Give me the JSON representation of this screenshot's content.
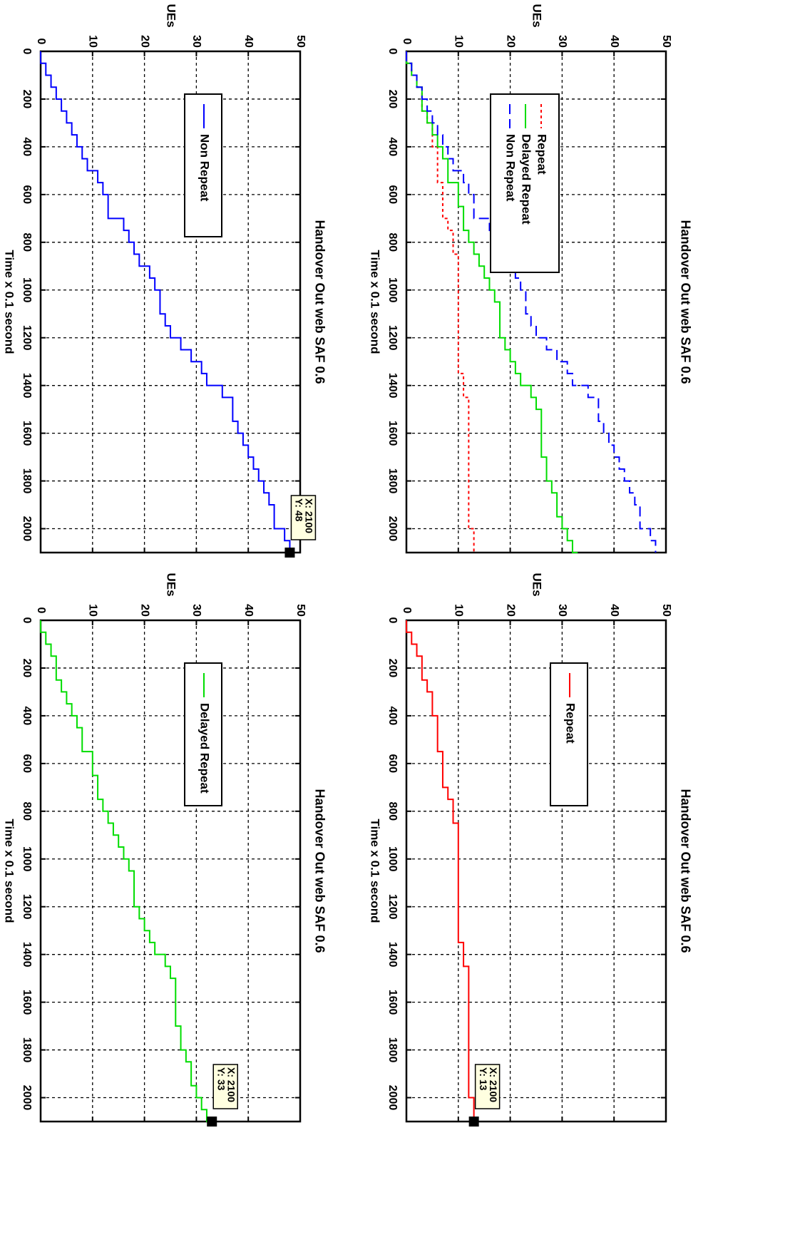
{
  "chart_data": [
    {
      "type": "line",
      "title": "Handover Out web SAF 0.6",
      "xlabel": "Time    x 0.1 second",
      "ylabel": "UEs",
      "xlim": [
        0,
        2100
      ],
      "ylim": [
        0,
        50
      ],
      "xticks": [
        "0",
        "200",
        "400",
        "600",
        "800",
        "1000",
        "1200",
        "1400",
        "1600",
        "1800",
        "2000"
      ],
      "yticks": [
        "0",
        "10",
        "20",
        "30",
        "40",
        "50"
      ],
      "grid": true,
      "legend": "top-left",
      "series": [
        {
          "name": "Repeat",
          "color": "#ff0000",
          "style": "dotted",
          "x": [
            0,
            50,
            100,
            150,
            200,
            250,
            300,
            350,
            400,
            450,
            500,
            550,
            600,
            650,
            700,
            750,
            800,
            850,
            900,
            950,
            1000,
            1050,
            1100,
            1150,
            1200,
            1250,
            1300,
            1350,
            1400,
            1450,
            1500,
            1550,
            1600,
            1650,
            1700,
            1750,
            1800,
            1850,
            1900,
            1950,
            2000,
            2050,
            2100
          ],
          "y": [
            0,
            1,
            2,
            3,
            3,
            4,
            5,
            5,
            6,
            6,
            6,
            7,
            7,
            7,
            8,
            9,
            9,
            10,
            10,
            10,
            10,
            10,
            10,
            10,
            10,
            10,
            10,
            11,
            11,
            12,
            12,
            12,
            12,
            12,
            12,
            12,
            12,
            12,
            12,
            12,
            13,
            13,
            13
          ]
        },
        {
          "name": "Delayed Repeat",
          "color": "#00dd00",
          "style": "solid",
          "x": [
            0,
            50,
            100,
            150,
            200,
            250,
            300,
            350,
            400,
            450,
            500,
            550,
            600,
            650,
            700,
            750,
            800,
            850,
            900,
            950,
            1000,
            1050,
            1100,
            1150,
            1200,
            1250,
            1300,
            1350,
            1400,
            1450,
            1500,
            1550,
            1600,
            1650,
            1700,
            1750,
            1800,
            1850,
            1900,
            1950,
            2000,
            2050,
            2100
          ],
          "y": [
            0,
            1,
            2,
            3,
            3,
            4,
            5,
            6,
            7,
            8,
            8,
            10,
            10,
            11,
            11,
            12,
            13,
            14,
            15,
            16,
            17,
            18,
            18,
            18,
            19,
            20,
            21,
            22,
            24,
            25,
            26,
            26,
            26,
            26,
            27,
            27,
            28,
            29,
            29,
            30,
            31,
            32,
            33
          ]
        },
        {
          "name": "Non Repeat",
          "color": "#0000ff",
          "style": "dashed",
          "x": [
            0,
            50,
            100,
            150,
            200,
            250,
            300,
            350,
            400,
            450,
            500,
            550,
            600,
            650,
            700,
            750,
            800,
            850,
            900,
            950,
            1000,
            1050,
            1100,
            1150,
            1200,
            1250,
            1300,
            1350,
            1400,
            1450,
            1500,
            1550,
            1600,
            1650,
            1700,
            1750,
            1800,
            1850,
            1900,
            1950,
            2000,
            2050,
            2100
          ],
          "y": [
            0,
            1,
            2,
            3,
            4,
            5,
            6,
            7,
            8,
            9,
            11,
            12,
            13,
            13,
            16,
            17,
            18,
            19,
            21,
            22,
            23,
            23,
            24,
            25,
            27,
            29,
            31,
            32,
            35,
            37,
            37,
            38,
            39,
            40,
            41,
            42,
            43,
            44,
            45,
            45,
            47,
            48,
            48
          ]
        }
      ]
    },
    {
      "type": "line",
      "title": "Handover Out web SAF 0.6",
      "xlabel": "Time    x 0.1 second",
      "ylabel": "UEs",
      "xlim": [
        0,
        2100
      ],
      "ylim": [
        0,
        50
      ],
      "xticks": [
        "0",
        "200",
        "400",
        "600",
        "800",
        "1000",
        "1200",
        "1400",
        "1600",
        "1800",
        "2000"
      ],
      "yticks": [
        "0",
        "10",
        "20",
        "30",
        "40",
        "50"
      ],
      "grid": true,
      "legend": "top-left",
      "datatip": {
        "x_label": "X: 2100",
        "y_label": "Y: 13",
        "x": 2100,
        "y": 13
      },
      "series": [
        {
          "name": "Repeat",
          "color": "#ff0000",
          "style": "solid",
          "x": [
            0,
            50,
            100,
            150,
            200,
            250,
            300,
            350,
            400,
            450,
            500,
            550,
            600,
            650,
            700,
            750,
            800,
            850,
            900,
            950,
            1000,
            1050,
            1100,
            1150,
            1200,
            1250,
            1300,
            1350,
            1400,
            1450,
            1500,
            1550,
            1600,
            1650,
            1700,
            1750,
            1800,
            1850,
            1900,
            1950,
            2000,
            2050,
            2100
          ],
          "y": [
            0,
            1,
            2,
            3,
            3,
            4,
            5,
            5,
            6,
            6,
            6,
            7,
            7,
            7,
            8,
            9,
            9,
            10,
            10,
            10,
            10,
            10,
            10,
            10,
            10,
            10,
            10,
            11,
            11,
            12,
            12,
            12,
            12,
            12,
            12,
            12,
            12,
            12,
            12,
            12,
            13,
            13,
            13
          ]
        }
      ]
    },
    {
      "type": "line",
      "title": "Handover Out web SAF 0.6",
      "xlabel": "Time    x 0.1 second",
      "ylabel": "UEs",
      "xlim": [
        0,
        2100
      ],
      "ylim": [
        0,
        50
      ],
      "xticks": [
        "0",
        "200",
        "400",
        "600",
        "800",
        "1000",
        "1200",
        "1400",
        "1600",
        "1800",
        "2000"
      ],
      "yticks": [
        "0",
        "10",
        "20",
        "30",
        "40",
        "50"
      ],
      "grid": true,
      "legend": "top-left",
      "datatip": {
        "x_label": "X: 2100",
        "y_label": "Y: 48",
        "x": 2100,
        "y": 48
      },
      "series": [
        {
          "name": "Non Repeat",
          "color": "#0000ff",
          "style": "solid",
          "x": [
            0,
            50,
            100,
            150,
            200,
            250,
            300,
            350,
            400,
            450,
            500,
            550,
            600,
            650,
            700,
            750,
            800,
            850,
            900,
            950,
            1000,
            1050,
            1100,
            1150,
            1200,
            1250,
            1300,
            1350,
            1400,
            1450,
            1500,
            1550,
            1600,
            1650,
            1700,
            1750,
            1800,
            1850,
            1900,
            1950,
            2000,
            2050,
            2100
          ],
          "y": [
            0,
            1,
            2,
            3,
            4,
            5,
            6,
            7,
            8,
            9,
            11,
            12,
            13,
            13,
            16,
            17,
            18,
            19,
            21,
            22,
            23,
            23,
            24,
            25,
            27,
            29,
            31,
            32,
            35,
            37,
            37,
            38,
            39,
            40,
            41,
            42,
            43,
            44,
            45,
            45,
            47,
            48,
            48
          ]
        }
      ]
    },
    {
      "type": "line",
      "title": "Handover Out web SAF 0.6",
      "xlabel": "Time    x 0.1 second",
      "ylabel": "UEs",
      "xlim": [
        0,
        2100
      ],
      "ylim": [
        0,
        50
      ],
      "xticks": [
        "0",
        "200",
        "400",
        "600",
        "800",
        "1000",
        "1200",
        "1400",
        "1600",
        "1800",
        "2000"
      ],
      "yticks": [
        "0",
        "10",
        "20",
        "30",
        "40",
        "50"
      ],
      "grid": true,
      "legend": "top-left",
      "datatip": {
        "x_label": "X: 2100",
        "y_label": "Y: 33",
        "x": 2100,
        "y": 33
      },
      "series": [
        {
          "name": "Delayed Repeat",
          "color": "#00dd00",
          "style": "solid",
          "x": [
            0,
            50,
            100,
            150,
            200,
            250,
            300,
            350,
            400,
            450,
            500,
            550,
            600,
            650,
            700,
            750,
            800,
            850,
            900,
            950,
            1000,
            1050,
            1100,
            1150,
            1200,
            1250,
            1300,
            1350,
            1400,
            1450,
            1500,
            1550,
            1600,
            1650,
            1700,
            1750,
            1800,
            1850,
            1900,
            1950,
            2000,
            2050,
            2100
          ],
          "y": [
            0,
            1,
            2,
            3,
            3,
            4,
            5,
            6,
            7,
            8,
            8,
            10,
            10,
            11,
            11,
            12,
            13,
            14,
            15,
            16,
            17,
            18,
            18,
            18,
            19,
            20,
            21,
            22,
            24,
            25,
            26,
            26,
            26,
            26,
            27,
            27,
            28,
            29,
            29,
            30,
            31,
            32,
            33
          ]
        }
      ]
    }
  ]
}
